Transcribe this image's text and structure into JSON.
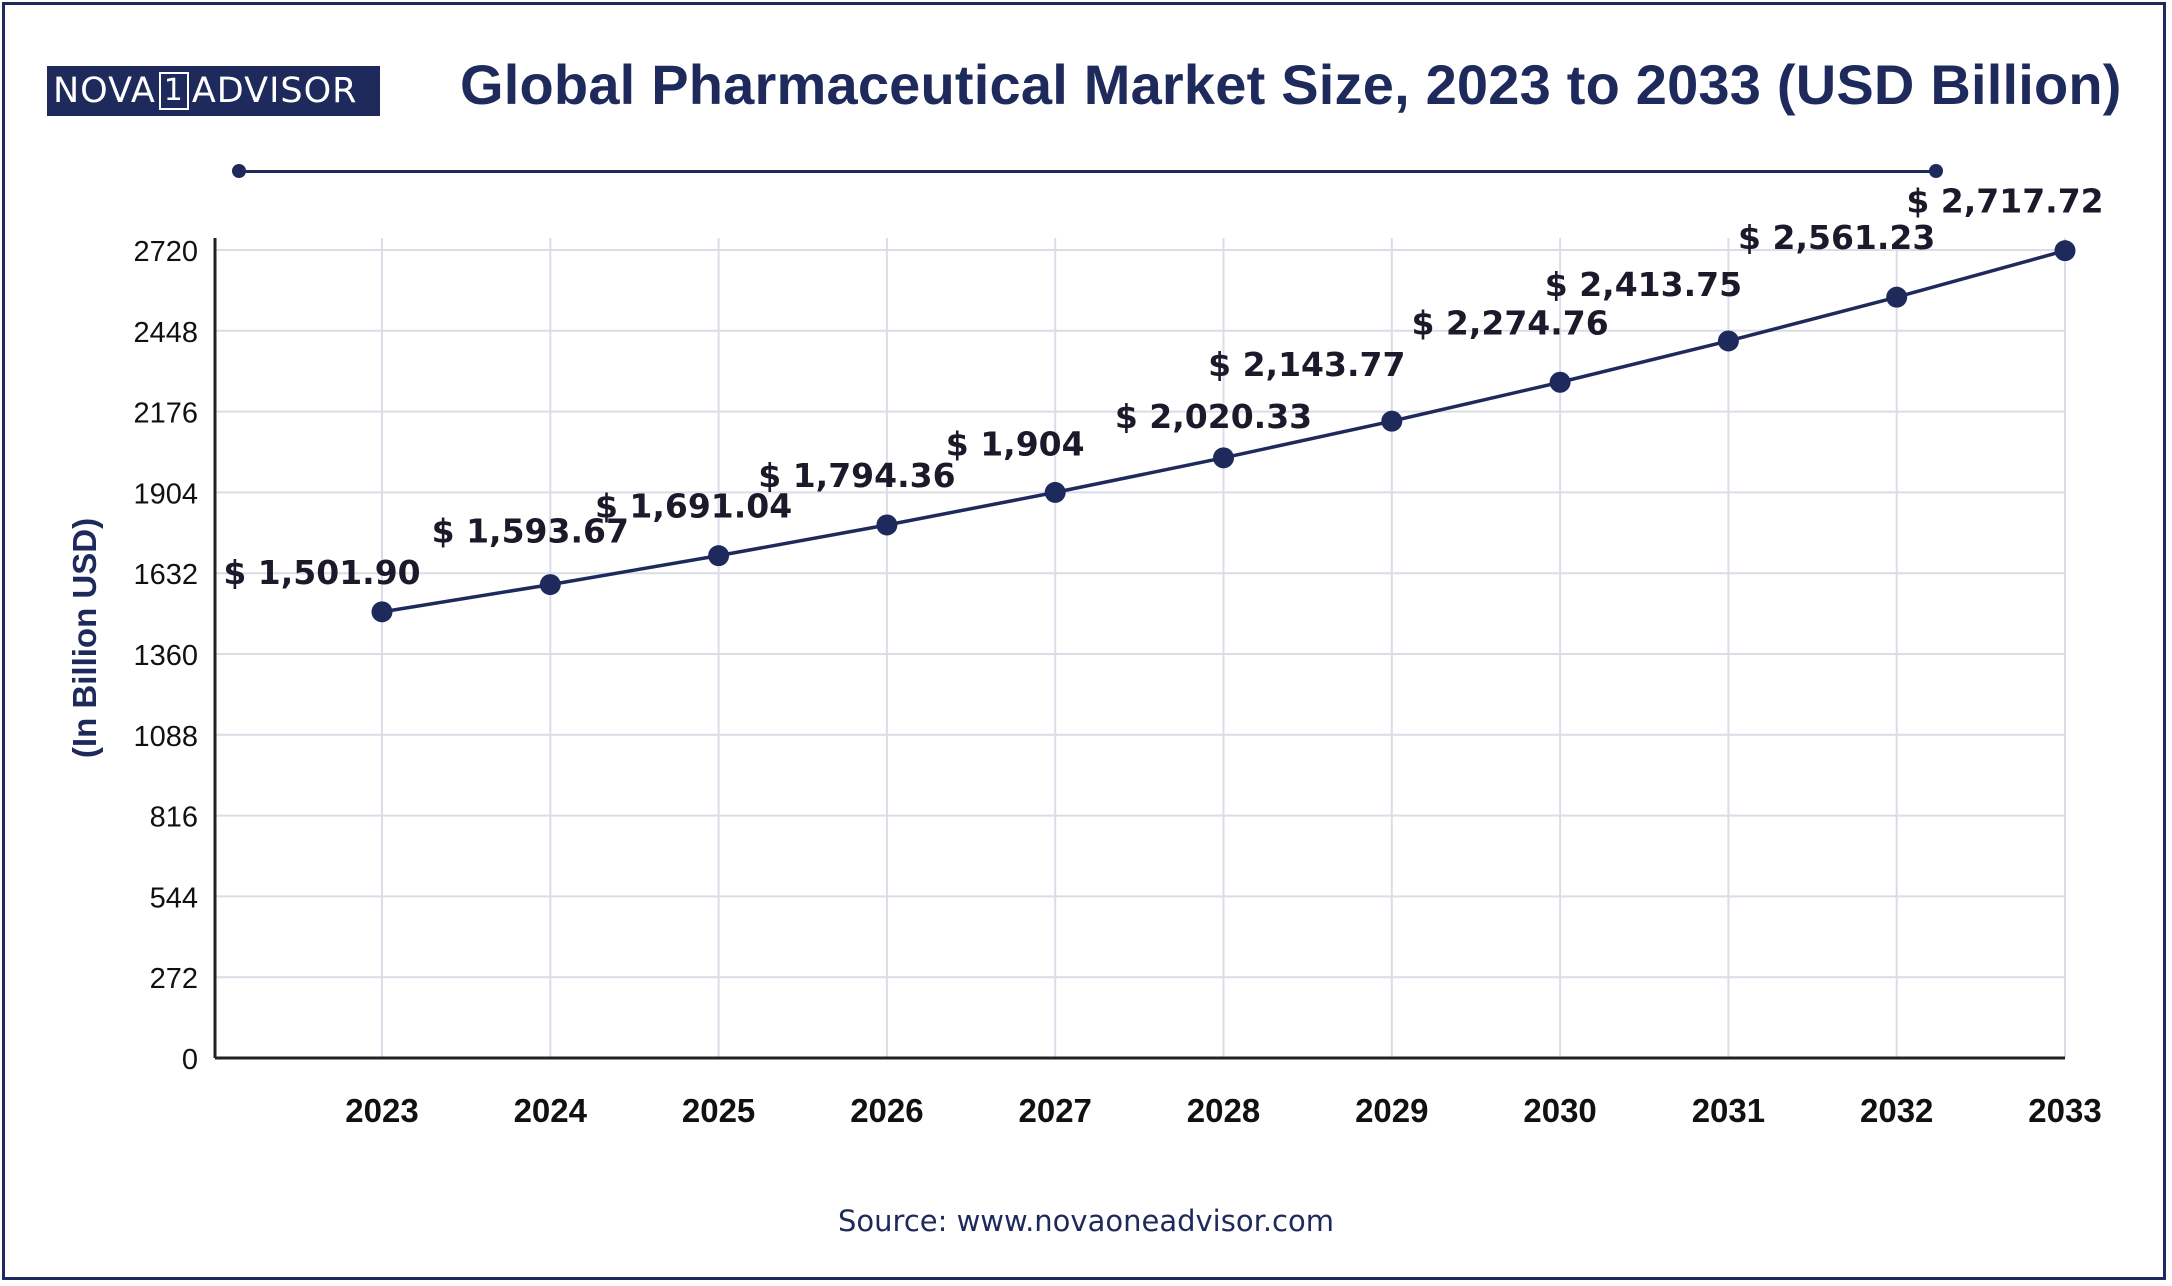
{
  "logo": {
    "left_text": "NOVA",
    "digit": "1",
    "right_text": "ADVISOR"
  },
  "colors": {
    "brand": "#1f2a5c",
    "grid": "#dcdce6",
    "line": "#1f2a5c",
    "text": "#111111"
  },
  "source": "Source: www.novaoneadvisor.com",
  "chart_data": {
    "type": "line",
    "title": "Global Pharmaceutical Market Size, 2023 to 2033 (USD Billion)",
    "xlabel": "",
    "ylabel": "(In Billion USD)",
    "categories": [
      "2023",
      "2024",
      "2025",
      "2026",
      "2027",
      "2028",
      "2029",
      "2030",
      "2031",
      "2032",
      "2033"
    ],
    "series": [
      {
        "values": [
          1501.9,
          1593.67,
          1691.04,
          1794.36,
          1904,
          2020.33,
          2143.77,
          2274.76,
          2413.75,
          2561.23,
          2717.72
        ],
        "labels": [
          "$ 1,501.90",
          "$ 1,593.67",
          "$ 1,691.04",
          "$ 1,794.36",
          "$ 1,904",
          "$ 2,020.33",
          "$ 2,143.77",
          "$ 2,274.76",
          "$ 2,413.75",
          "$ 2,561.23",
          "$ 2,717.72"
        ]
      }
    ],
    "yticks": [
      "0",
      "272",
      "544",
      "816",
      "1088",
      "1360",
      "1632",
      "1904",
      "2176",
      "2448",
      "2720"
    ],
    "ylim": [
      0,
      2720
    ],
    "grid": true,
    "legend": "none"
  }
}
